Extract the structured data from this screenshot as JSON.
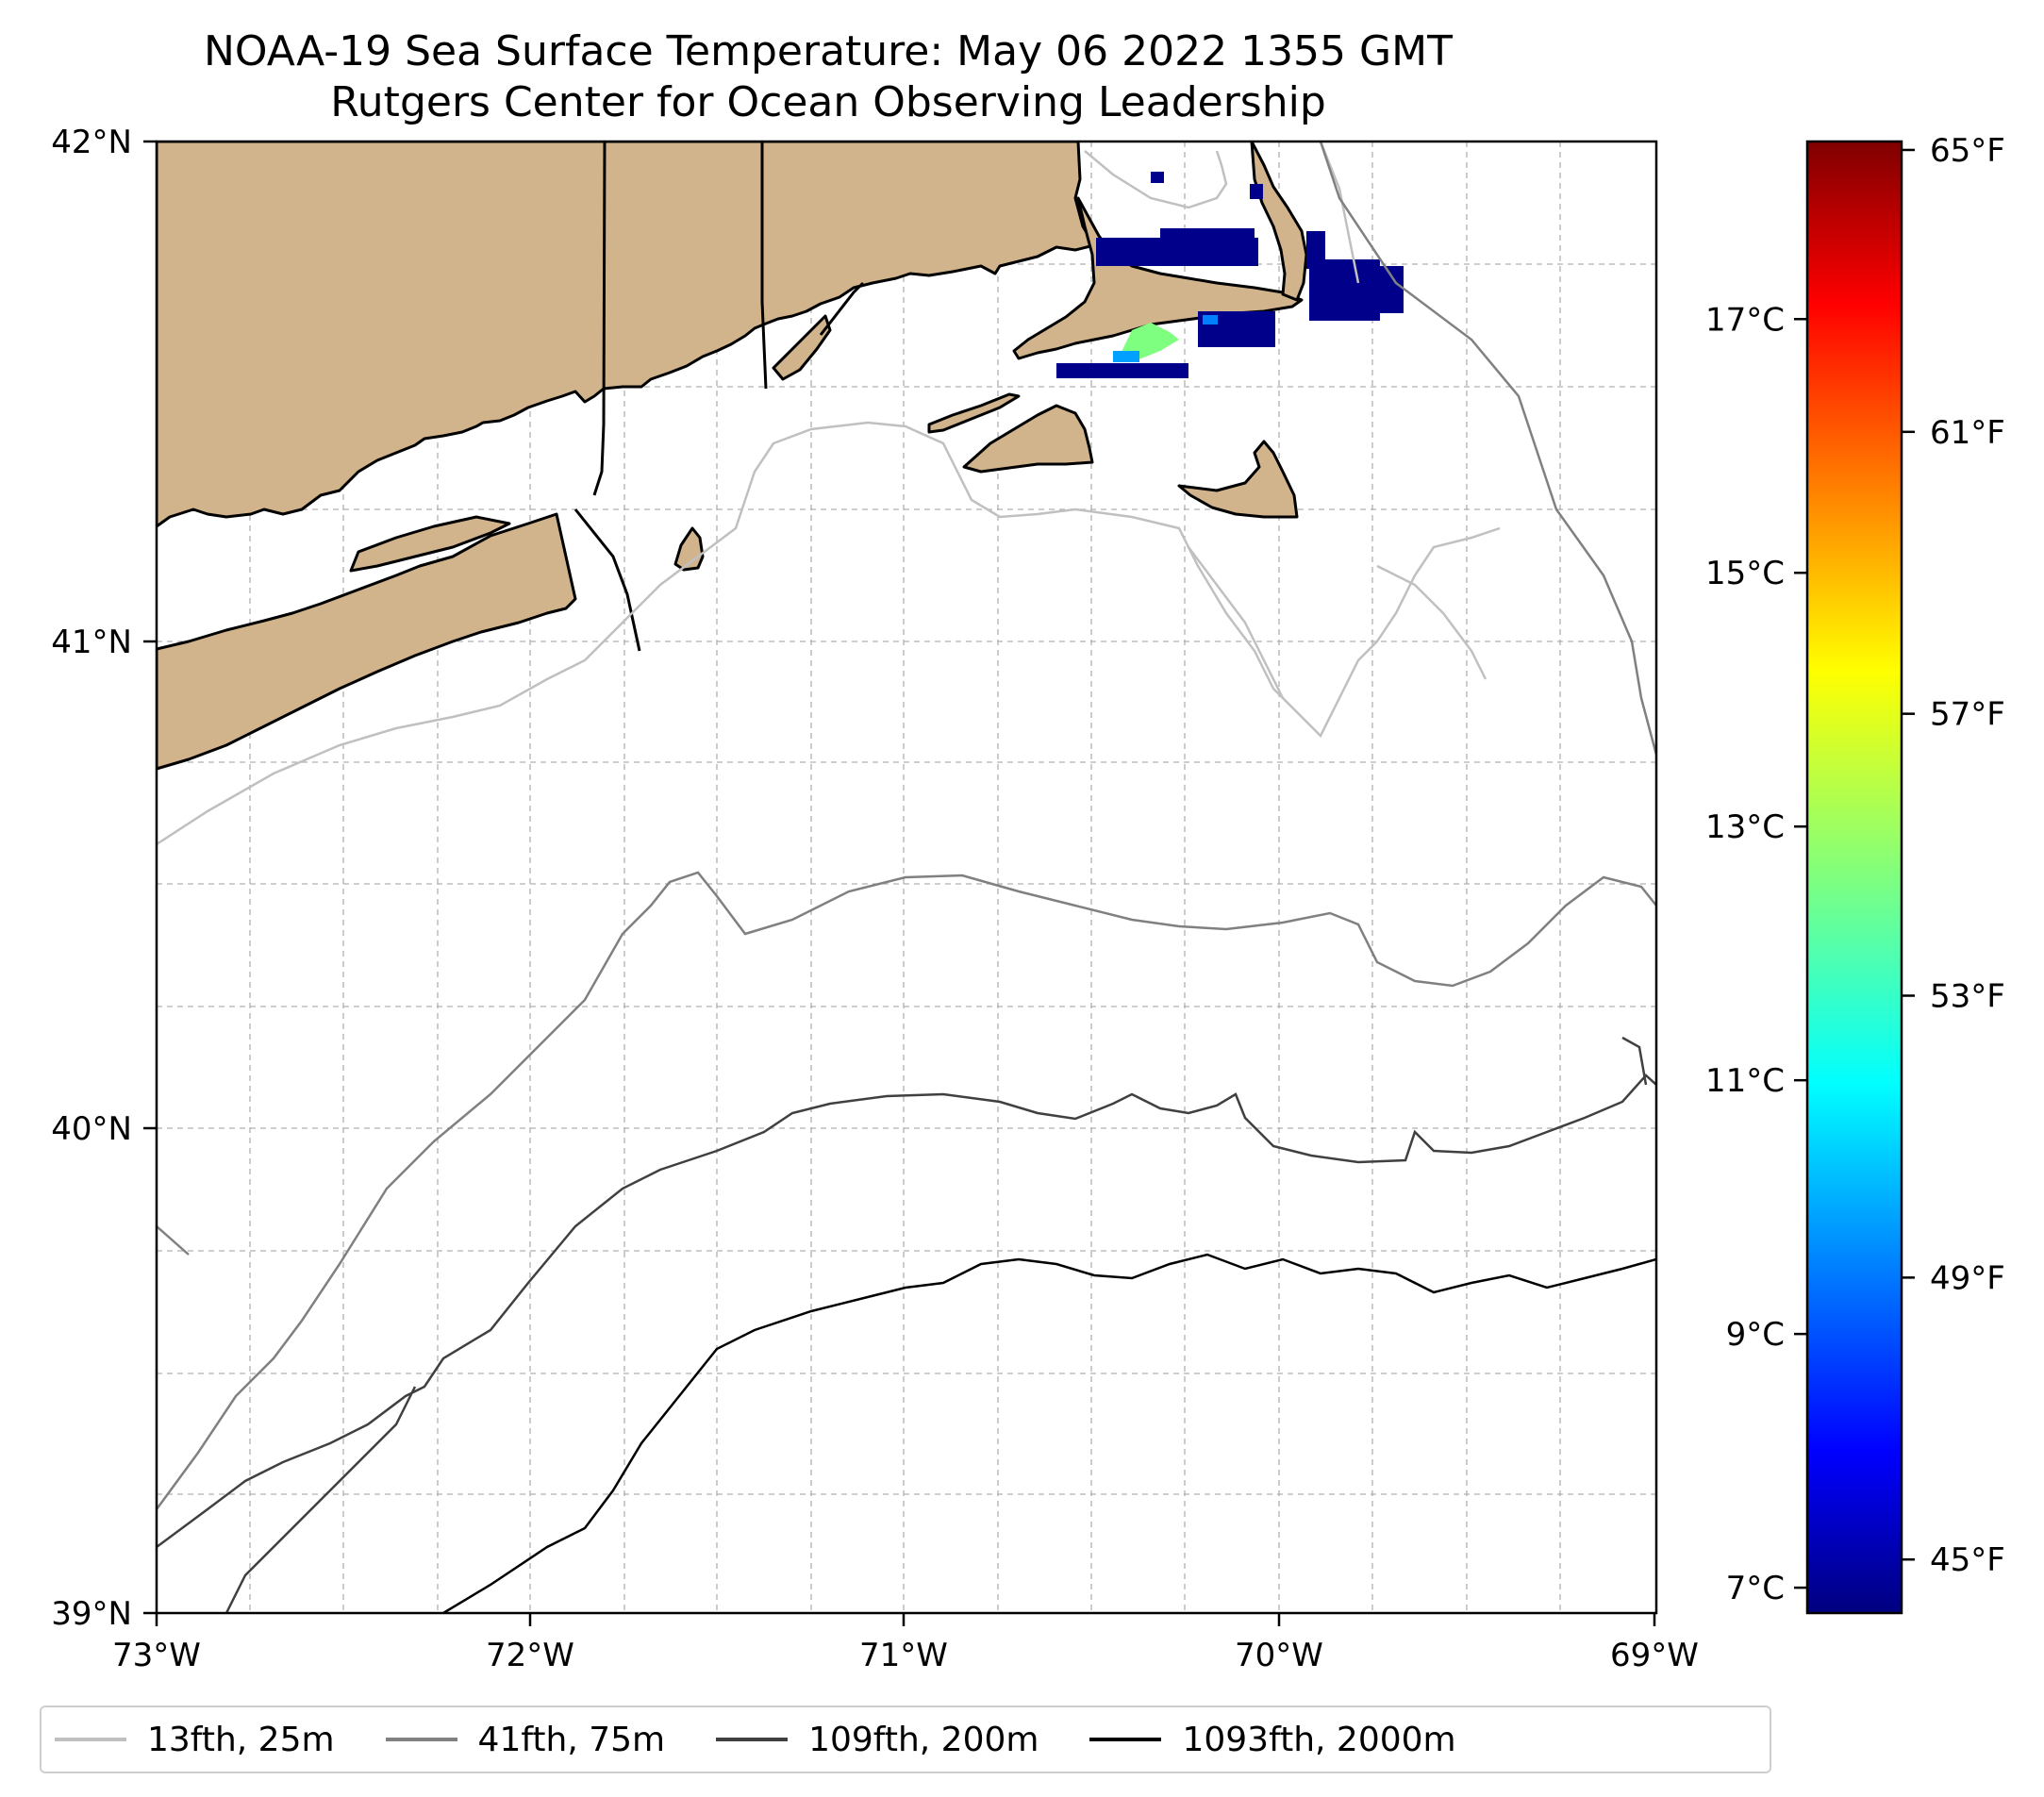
{
  "header": {
    "title_line1": "NOAA-19 Sea Surface Temperature: May 06 2022 1355 GMT",
    "title_line2": "Rutgers Center for Ocean Observing Leadership"
  },
  "map": {
    "lon_ticks": [
      "73°W",
      "72°W",
      "71°W",
      "70°W",
      "69°W"
    ],
    "lat_ticks": [
      "42°N",
      "41°N",
      "40°N",
      "39°N"
    ],
    "lon_range": [
      -73,
      -69
    ],
    "lat_range": [
      39,
      42
    ],
    "colors": {
      "land": "#d2b48c",
      "coast": "#000000",
      "grid": "#b0b0b0"
    }
  },
  "colorbar": {
    "colormap": "jet",
    "celsius_ticks": [
      "17°C",
      "15°C",
      "13°C",
      "11°C",
      "9°C",
      "7°C"
    ],
    "fahrenheit_ticks": [
      "65°F",
      "61°F",
      "57°F",
      "53°F",
      "49°F",
      "45°F"
    ],
    "celsius_values": [
      17,
      15,
      13,
      11,
      9,
      7
    ],
    "fahrenheit_values": [
      65,
      61,
      57,
      53,
      49,
      45
    ],
    "range_c": [
      6.8,
      18.4
    ]
  },
  "legend": {
    "items": [
      {
        "label": "13fth, 25m",
        "color": "#c0c0c0"
      },
      {
        "label": "41fth, 75m",
        "color": "#808080"
      },
      {
        "label": "109fth, 200m",
        "color": "#404040"
      },
      {
        "label": "1093fth, 2000m",
        "color": "#000000"
      }
    ]
  }
}
